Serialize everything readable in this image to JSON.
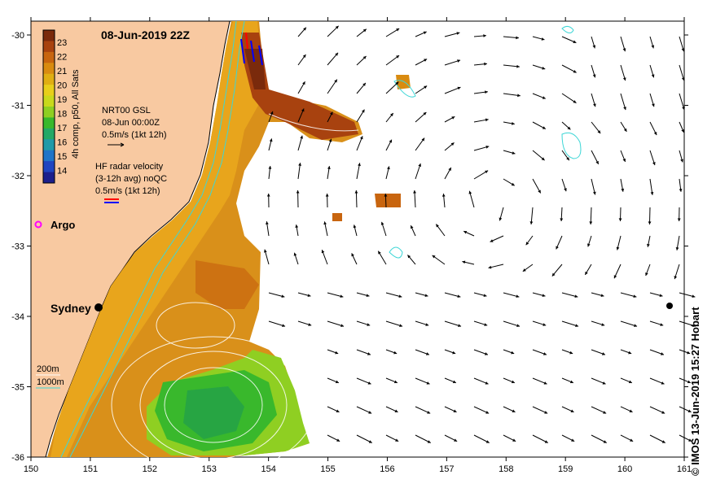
{
  "map": {
    "title": "08-Jun-2019 22Z",
    "credit": "© IMOS 13-Jun-2019 15:27 Hobart",
    "x_ticks": [
      "150",
      "151",
      "152",
      "153",
      "154",
      "155",
      "156",
      "157",
      "158",
      "159",
      "160",
      "161"
    ],
    "y_ticks": [
      "-30",
      "-31",
      "-32",
      "-33",
      "-34",
      "-35",
      "-36"
    ],
    "colorbar": {
      "label": "4h comp, p50, All Sats",
      "ticks": [
        "23",
        "22",
        "21",
        "20",
        "19",
        "18",
        "17",
        "16",
        "15",
        "14"
      ],
      "colors": [
        "#7a2a0c",
        "#a8420f",
        "#c8650f",
        "#d98b10",
        "#e0ae12",
        "#e8cf1a",
        "#c9d91c",
        "#8fcf22",
        "#39b82c",
        "#23a866",
        "#1f9aa8",
        "#1f74c8",
        "#1f44c0",
        "#1c1f8c"
      ]
    },
    "legend": {
      "gsl_title": "NRT00 GSL",
      "gsl_date": "08-Jun 00:00Z",
      "gsl_scale": "0.5m/s (1kt 12h)",
      "hf_title": "HF radar velocity",
      "hf_sub": "(3-12h avg) noQC",
      "hf_scale": "0.5m/s (1kt 12h)",
      "argo": "Argo",
      "depth_200": "200m",
      "depth_1000": "1000m"
    },
    "places": {
      "sydney": "Sydney"
    },
    "colors": {
      "land": "#f8c9a1",
      "coast": "#000000",
      "bathy": "#3dd6d6",
      "argo": "#ff00ff",
      "hf_red": "#ff0000",
      "hf_blue": "#0000ff"
    }
  }
}
